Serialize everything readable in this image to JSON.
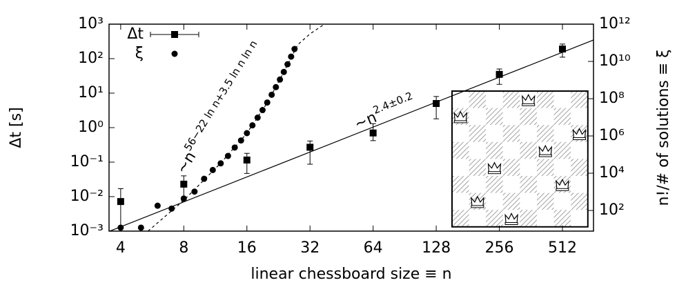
{
  "chart_data": {
    "type": "loglog-errorbar",
    "x_label": "linear chessboard size ≡ n",
    "y_label": "Δt [s]",
    "y2_label": "n!/# of solutions ≡ ξ",
    "xlim": [
      3.52,
      720
    ],
    "xticks": [
      4,
      8,
      16,
      32,
      64,
      128,
      256,
      512
    ],
    "log_x": true,
    "ylim": [
      0.001,
      1000
    ],
    "log_y": true,
    "yticks": [
      {
        "value": 0.001,
        "label": "10⁻³"
      },
      {
        "value": 0.01,
        "label": "10⁻²"
      },
      {
        "value": 0.1,
        "label": "10⁻¹"
      },
      {
        "value": 1,
        "label": "10⁰"
      },
      {
        "value": 10,
        "label": "10¹"
      },
      {
        "value": 100,
        "label": "10²"
      },
      {
        "value": 1000,
        "label": "10³"
      }
    ],
    "y2lim": [
      7.8,
      1000000000000
    ],
    "log_y2": true,
    "y2ticks": [
      {
        "value": 100,
        "label": "10²"
      },
      {
        "value": 10000,
        "label": "10⁴"
      },
      {
        "value": 1000000,
        "label": "10⁶"
      },
      {
        "value": 100000000,
        "label": "10⁸"
      },
      {
        "value": 10000000000,
        "label": "10¹⁰"
      },
      {
        "value": 1000000000000,
        "label": "10¹²"
      }
    ],
    "color": "#000000",
    "series": [
      {
        "name": "Δt",
        "marker": "square",
        "axis": "y",
        "x": [
          4,
          8,
          16,
          32,
          64,
          128,
          256,
          512
        ],
        "values": [
          0.0072,
          0.023,
          0.115,
          0.27,
          0.7,
          5,
          35,
          190
        ],
        "lower": [
          0.001,
          0.0076,
          0.047,
          0.087,
          0.42,
          1.8,
          18,
          110
        ],
        "upper": [
          0.017,
          0.04,
          0.18,
          0.41,
          1.3,
          8,
          50,
          265
        ]
      },
      {
        "name": "ξ",
        "marker": "circle",
        "axis": "y2",
        "x": [
          4,
          5,
          6,
          7,
          8,
          9,
          10,
          11,
          12,
          13,
          14,
          15,
          16,
          17,
          18,
          19,
          20,
          21,
          22,
          23,
          24,
          25,
          26,
          27
        ],
        "values": [
          12,
          12,
          180,
          126,
          438.3,
          1030.9,
          5012.2,
          14894,
          33733,
          84477,
          238456,
          573752,
          1416300,
          3712000,
          9612000,
          24485000,
          62335000,
          162360000,
          417690000,
          1066800000,
          2727100000,
          7025300000,
          18071000000,
          46354000000
        ]
      }
    ],
    "fits": [
      {
        "style": "solid",
        "axis": "y",
        "x": [
          3.52,
          720
        ],
        "values": [
          0.00098,
          347
        ],
        "annotation": {
          "text": "∼n",
          "exponent": "2.4±0.2"
        }
      },
      {
        "style": "dashed",
        "axis": "y2",
        "x": [
          5.4,
          8,
          12,
          16,
          20,
          24,
          28,
          32,
          37.5
        ],
        "values": [
          7.8,
          350,
          35000,
          1400000,
          60000000,
          2700000000,
          80000000000,
          300000000000,
          1000000000000
        ],
        "annotation": {
          "text": "∼n",
          "exponent": "56−22 ln n+3.5 ln n ln n"
        }
      }
    ]
  }
}
